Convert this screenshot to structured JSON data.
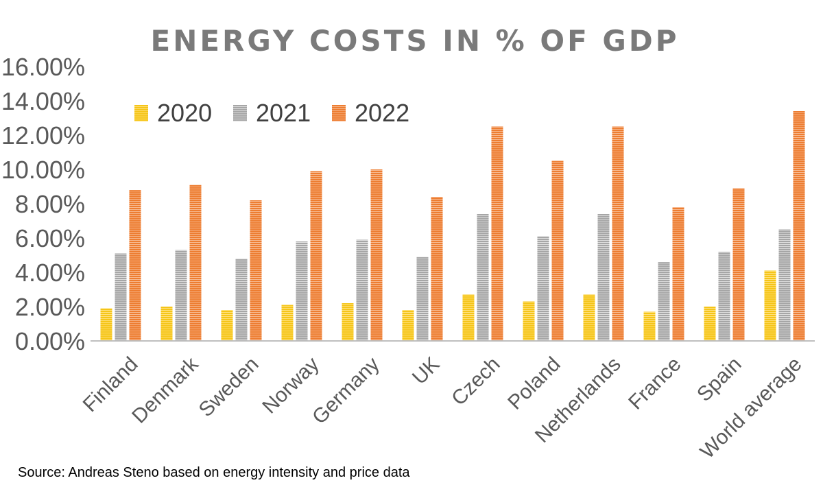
{
  "chart_data": {
    "type": "bar",
    "title": "ENERGY COSTS IN % OF GDP",
    "xlabel": "",
    "ylabel": "",
    "categories": [
      "Finland",
      "Denmark",
      "Sweden",
      "Norway",
      "Germany",
      "UK",
      "Czech",
      "Poland",
      "Netherlands",
      "France",
      "Spain",
      "World average"
    ],
    "series": [
      {
        "name": "2020",
        "color": "#f5c518",
        "values": [
          1.9,
          2.0,
          1.8,
          2.1,
          2.2,
          1.8,
          2.7,
          2.3,
          2.7,
          1.7,
          2.0,
          4.1
        ]
      },
      {
        "name": "2021",
        "color": "#a6a6a6",
        "values": [
          5.1,
          5.3,
          4.8,
          5.8,
          5.9,
          4.9,
          7.4,
          6.1,
          7.4,
          4.6,
          5.2,
          6.5
        ]
      },
      {
        "name": "2022",
        "color": "#ed7d31",
        "values": [
          8.8,
          9.1,
          8.2,
          9.9,
          10.0,
          8.4,
          12.5,
          10.5,
          12.5,
          7.8,
          8.9,
          13.4
        ]
      }
    ],
    "ylim": [
      0,
      16
    ],
    "yticks": [
      "0.00%",
      "2.00%",
      "4.00%",
      "6.00%",
      "8.00%",
      "10.00%",
      "12.00%",
      "14.00%",
      "16.00%"
    ],
    "grid": false,
    "legend_position": "top-left",
    "source": "Source: Andreas Steno based on energy intensity and price data"
  }
}
